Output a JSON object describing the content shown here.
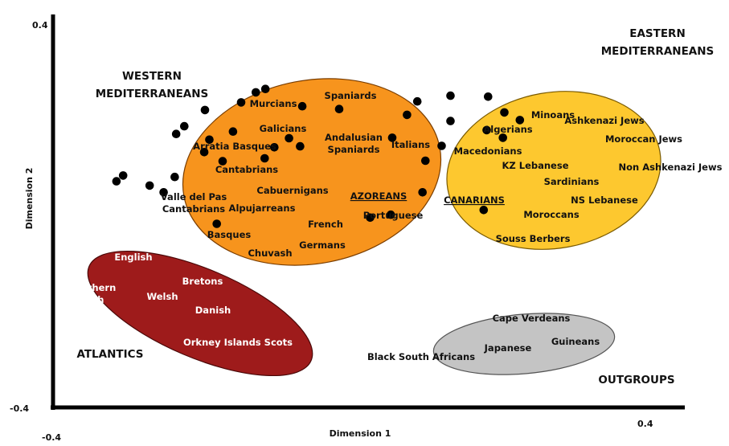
{
  "chart_data": {
    "type": "scatter",
    "xlabel": "Dimension 1",
    "ylabel": "Dimension 2",
    "xlim": [
      -0.4,
      0.4
    ],
    "ylim": [
      -0.4,
      0.4
    ],
    "ticks": {
      "x_min": "-0.4",
      "x_max": "0.4",
      "y_min": "-0.4",
      "y_max": "0.4"
    },
    "grid": false,
    "group_labels": [
      {
        "name": "western",
        "lines": [
          "WESTERN",
          "MEDITERRANEANS"
        ]
      },
      {
        "name": "eastern",
        "lines": [
          "EASTERN",
          "MEDITERRANEANS"
        ]
      },
      {
        "name": "atlantics",
        "lines": [
          "ATLANTICS"
        ]
      },
      {
        "name": "outgroups",
        "lines": [
          "OUTGROUPS"
        ]
      }
    ],
    "groups": [
      {
        "name": "western",
        "color": "#f7941d",
        "stroke": "#7a3d00"
      },
      {
        "name": "eastern",
        "color": "#fdc82f",
        "stroke": "#7a5a00"
      },
      {
        "name": "atlantics",
        "color": "#9e1b1b",
        "stroke": "#4a0808"
      },
      {
        "name": "outgroups",
        "color": "#c4c4c4",
        "stroke": "#555555"
      }
    ],
    "points": [
      {
        "label": "Spaniards",
        "lines": [
          "Spaniards"
        ],
        "x": -0.112,
        "y": 0.266,
        "group": "western"
      },
      {
        "label": "Murcians",
        "lines": [
          "Murcians"
        ],
        "x": -0.125,
        "y": 0.259,
        "group": "western"
      },
      {
        "label": "Galicians",
        "lines": [
          "Galicians"
        ],
        "x": -0.145,
        "y": 0.238,
        "group": "western"
      },
      {
        "label": "Andalusian Spaniards",
        "lines": [
          "Andalusian",
          "Spaniards"
        ],
        "x": -0.062,
        "y": 0.23,
        "group": "western"
      },
      {
        "label": "Italians",
        "lines": [
          "Italians"
        ],
        "x": -0.012,
        "y": 0.224,
        "group": "western"
      },
      {
        "label": "Arratia Basques",
        "lines": [
          "Arratia Basques"
        ],
        "x": -0.194,
        "y": 0.222,
        "group": "western"
      },
      {
        "label": "Cantabrians",
        "lines": [
          "Cantabrians"
        ],
        "x": -0.222,
        "y": 0.188,
        "group": "western"
      },
      {
        "label": "Cabuernigans",
        "lines": [
          "Cabuernigans"
        ],
        "x": -0.156,
        "y": 0.177,
        "group": "western"
      },
      {
        "label": "Valle del Pas Cantabrians",
        "lines": [
          "Valle del Pas",
          "Cantabrians"
        ],
        "x": -0.233,
        "y": 0.172,
        "group": "western"
      },
      {
        "label": "AZOREANS",
        "lines": [
          "AZOREANS"
        ],
        "x": -0.08,
        "y": 0.163,
        "group": "western",
        "underline": true
      },
      {
        "label": "Alpujarreans",
        "lines": [
          "Alpujarreans"
        ],
        "x": -0.188,
        "y": 0.16,
        "group": "western"
      },
      {
        "label": "Portuguese",
        "lines": [
          "Portuguese"
        ],
        "x": -0.065,
        "y": 0.146,
        "group": "western"
      },
      {
        "label": "French",
        "lines": [
          "French"
        ],
        "x": -0.1,
        "y": 0.144,
        "group": "western"
      },
      {
        "label": "Basques",
        "lines": [
          "Basques"
        ],
        "x": -0.195,
        "y": 0.134,
        "group": "western"
      },
      {
        "label": "Germans",
        "lines": [
          "Germans"
        ],
        "x": -0.113,
        "y": 0.121,
        "group": "western"
      },
      {
        "label": "Chuvash",
        "lines": [
          "Chuvash"
        ],
        "x": -0.17,
        "y": 0.115,
        "group": "western"
      },
      {
        "label": "Minoans",
        "lines": [
          "Minoans"
        ],
        "x": 0.139,
        "y": 0.252,
        "group": "eastern"
      },
      {
        "label": "Ashkenazi Jews",
        "lines": [
          "Ashkenazi Jews"
        ],
        "x": 0.19,
        "y": 0.25,
        "group": "eastern"
      },
      {
        "label": "Algerians",
        "lines": [
          "Algerians"
        ],
        "x": 0.094,
        "y": 0.24,
        "group": "eastern"
      },
      {
        "label": "Moroccan Jews",
        "lines": [
          "Moroccan Jews"
        ],
        "x": 0.212,
        "y": 0.217,
        "group": "eastern"
      },
      {
        "label": "Macedonians",
        "lines": [
          "Macedonians"
        ],
        "x": 0.08,
        "y": 0.212,
        "group": "eastern"
      },
      {
        "label": "Non Ashkenazi Jews",
        "lines": [
          "Non Ashkenazi Jews"
        ],
        "x": 0.233,
        "y": 0.201,
        "group": "eastern"
      },
      {
        "label": "KZ Lebanese",
        "lines": [
          "KZ Lebanese"
        ],
        "x": 0.139,
        "y": 0.199,
        "group": "eastern"
      },
      {
        "label": "Sardinians",
        "lines": [
          "Sardinians"
        ],
        "x": 0.188,
        "y": 0.18,
        "group": "eastern"
      },
      {
        "label": "CANARIANS",
        "lines": [
          "CANARIANS"
        ],
        "x": 0.06,
        "y": 0.164,
        "group": "eastern",
        "underline": true
      },
      {
        "label": "NS Lebanese",
        "lines": [
          "NS Lebanese"
        ],
        "x": 0.21,
        "y": 0.164,
        "group": "eastern"
      },
      {
        "label": "Moroccans",
        "lines": [
          "Moroccans"
        ],
        "x": 0.127,
        "y": 0.147,
        "group": "eastern"
      },
      {
        "label": "Souss Berbers",
        "lines": [
          "Souss Berbers"
        ],
        "x": 0.105,
        "y": 0.116,
        "group": "eastern"
      },
      {
        "label": "English",
        "lines": [
          "English"
        ],
        "x": -0.305,
        "y": 0.085,
        "group": "atlantics"
      },
      {
        "label": "Bretons",
        "lines": [
          "Bretons"
        ],
        "x": -0.235,
        "y": 0.082,
        "group": "atlantics"
      },
      {
        "label": "Northern Irish",
        "lines": [
          "Northern",
          "Irish"
        ],
        "x": -0.314,
        "y": 0.073,
        "group": "atlantics"
      },
      {
        "label": "Welsh",
        "lines": [
          "Welsh"
        ],
        "x": -0.269,
        "y": 0.064,
        "group": "atlantics"
      },
      {
        "label": "Danish",
        "lines": [
          "Danish"
        ],
        "x": -0.25,
        "y": 0.05,
        "group": "atlantics"
      },
      {
        "label": "Orkney Islands Scots",
        "lines": [
          "Orkney Islands Scots"
        ],
        "x": -0.178,
        "y": -0.016,
        "group": "atlantics"
      },
      {
        "label": "Cape Verdeans",
        "lines": [
          "Cape Verdeans"
        ],
        "x": 0.101,
        "y": 0.05,
        "group": "outgroups"
      },
      {
        "label": "Guineans",
        "lines": [
          "Guineans"
        ],
        "x": 0.184,
        "y": 0.013,
        "group": "outgroups"
      },
      {
        "label": "Japanese",
        "lines": [
          "Japanese"
        ],
        "x": 0.058,
        "y": 0.003,
        "group": "outgroups"
      },
      {
        "label": "Black South Africans",
        "lines": [
          "Black South Africans"
        ],
        "x": 0.03,
        "y": -0.003,
        "group": "outgroups"
      }
    ]
  }
}
